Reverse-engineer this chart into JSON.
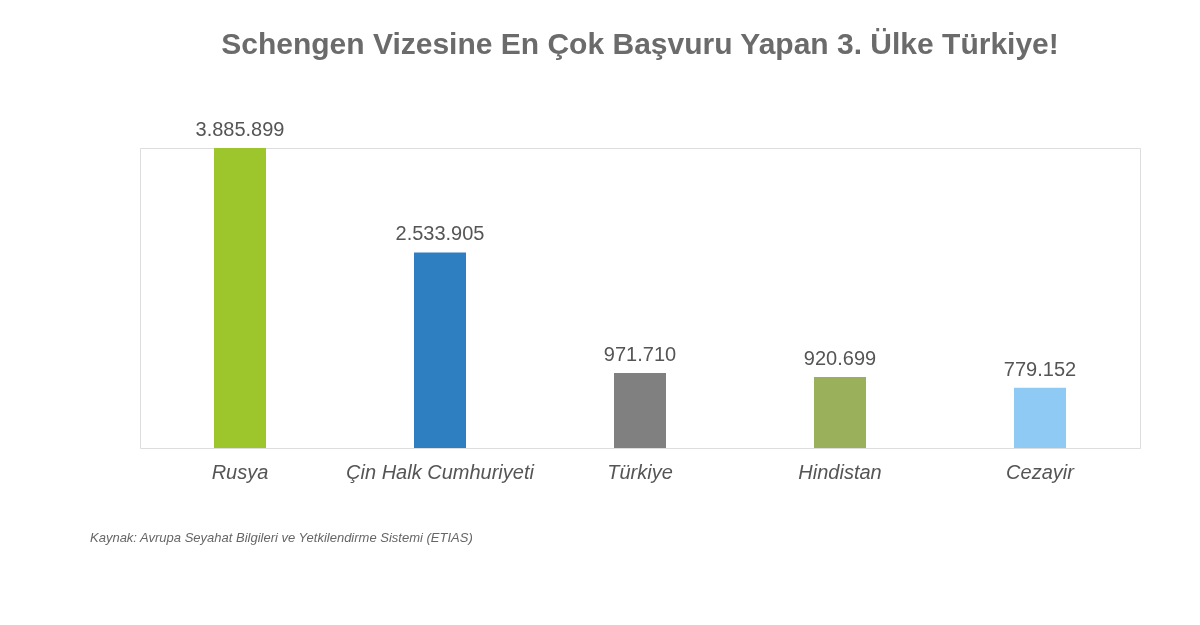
{
  "chart_data": {
    "type": "bar",
    "title": "Schengen Vizesine En Çok Başvuru Yapan 3. Ülke Türkiye!",
    "categories": [
      "Rusya",
      "Çin Halk Cumhuriyeti",
      "Türkiye",
      "Hindistan",
      "Cezayir"
    ],
    "values": [
      3885899,
      2533905,
      971710,
      920699,
      779152
    ],
    "colors": [
      "#9dc62d",
      "#2e7fc1",
      "#808080",
      "#9bb05a",
      "#8ecaf4"
    ],
    "value_labels": [
      "3.885.899",
      "2.533.905",
      "971.710",
      "920.699",
      "779.152"
    ],
    "tick_labels": "x",
    "grid": false,
    "annotations": [
      "Kaynak: Avrupa Seyahat Bilgileri ve Yetkilendirme Sistemi (ETIAS)"
    ]
  }
}
